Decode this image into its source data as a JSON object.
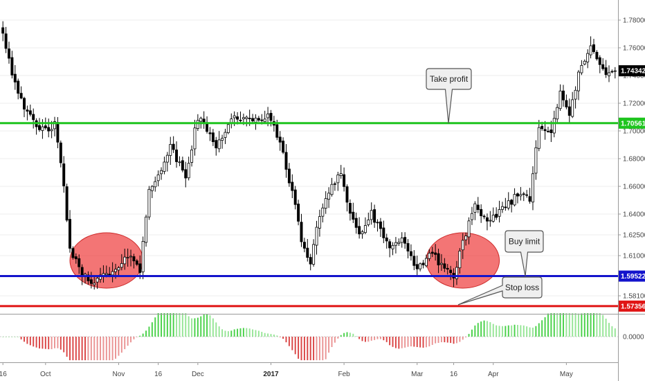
{
  "chart_data": {
    "type": "candlestick",
    "price_axis": {
      "range": [
        1.5685,
        1.7905
      ],
      "ticks": [
        "1.78000",
        "1.76000",
        "1.74000",
        "1.72000",
        "1.70000",
        "1.68000",
        "1.66000",
        "1.64000",
        "1.62500",
        "1.61000",
        "1.58100"
      ]
    },
    "time_axis": {
      "bar_count": 202,
      "labels": [
        {
          "text": "16",
          "bar": 0
        },
        {
          "text": "Oct",
          "bar": 14
        },
        {
          "text": "Nov",
          "bar": 38
        },
        {
          "text": "16",
          "bar": 51
        },
        {
          "text": "Dec",
          "bar": 64
        },
        {
          "text": "2017",
          "bar": 88
        },
        {
          "text": "Feb",
          "bar": 112
        },
        {
          "text": "Mar",
          "bar": 136
        },
        {
          "text": "16",
          "bar": 148
        },
        {
          "text": "Apr",
          "bar": 161
        },
        {
          "text": "May",
          "bar": 185
        }
      ]
    },
    "anchors": [
      [
        0,
        1.772
      ],
      [
        3,
        1.742
      ],
      [
        8,
        1.712
      ],
      [
        12,
        1.7
      ],
      [
        17,
        1.704
      ],
      [
        20,
        1.66
      ],
      [
        22,
        1.615
      ],
      [
        25,
        1.6
      ],
      [
        28,
        1.592
      ],
      [
        32,
        1.594
      ],
      [
        38,
        1.6
      ],
      [
        42,
        1.612
      ],
      [
        45,
        1.6
      ],
      [
        48,
        1.656
      ],
      [
        55,
        1.688
      ],
      [
        60,
        1.667
      ],
      [
        64,
        1.71
      ],
      [
        70,
        1.69
      ],
      [
        76,
        1.711
      ],
      [
        82,
        1.706
      ],
      [
        87,
        1.712
      ],
      [
        92,
        1.685
      ],
      [
        95,
        1.655
      ],
      [
        98,
        1.622
      ],
      [
        101,
        1.604
      ],
      [
        104,
        1.64
      ],
      [
        108,
        1.662
      ],
      [
        111,
        1.67
      ],
      [
        114,
        1.64
      ],
      [
        117,
        1.625
      ],
      [
        121,
        1.64
      ],
      [
        126,
        1.618
      ],
      [
        131,
        1.62
      ],
      [
        136,
        1.6
      ],
      [
        140,
        1.612
      ],
      [
        145,
        1.602
      ],
      [
        148,
        1.594
      ],
      [
        151,
        1.621
      ],
      [
        155,
        1.645
      ],
      [
        159,
        1.632
      ],
      [
        163,
        1.643
      ],
      [
        170,
        1.655
      ],
      [
        173,
        1.652
      ],
      [
        176,
        1.705
      ],
      [
        180,
        1.7
      ],
      [
        183,
        1.726
      ],
      [
        186,
        1.712
      ],
      [
        189,
        1.74
      ],
      [
        193,
        1.76
      ],
      [
        196,
        1.75
      ],
      [
        198,
        1.743
      ]
    ],
    "seed": 42,
    "levels": [
      {
        "name": "take-profit",
        "value": 1.7056,
        "tag": "1.70561",
        "color": "#1ec41e"
      },
      {
        "name": "buy-limit",
        "value": 1.59522,
        "tag": "1.59522",
        "color": "#1414cc"
      },
      {
        "name": "stop-loss",
        "value": 1.57356,
        "tag": "1.57356",
        "color": "#e01414"
      }
    ],
    "last_price": {
      "value": 1.74342,
      "tag": "1.74342"
    },
    "highlight_zones": [
      {
        "bar_start": 23,
        "bar_end": 45,
        "price_low": 1.5865,
        "price_high": 1.6265
      },
      {
        "bar_start": 140,
        "bar_end": 162,
        "price_low": 1.5865,
        "price_high": 1.6265
      }
    ],
    "callouts": [
      {
        "name": "take-profit-callout",
        "label": "Take profit"
      },
      {
        "name": "buy-limit-callout",
        "label": "Buy limit"
      },
      {
        "name": "stop-loss-callout",
        "label": "Stop loss"
      }
    ],
    "oscillator": {
      "zero_label": "0.0000",
      "positive_color": "#3fcf3f",
      "negative_color": "#d83a3a"
    }
  },
  "colors": {
    "candle_up": "#ffffff",
    "candle_down": "#000000",
    "candle_border": "#000000",
    "zone_fill": "#ee4040",
    "grid": "#eeeeee"
  }
}
